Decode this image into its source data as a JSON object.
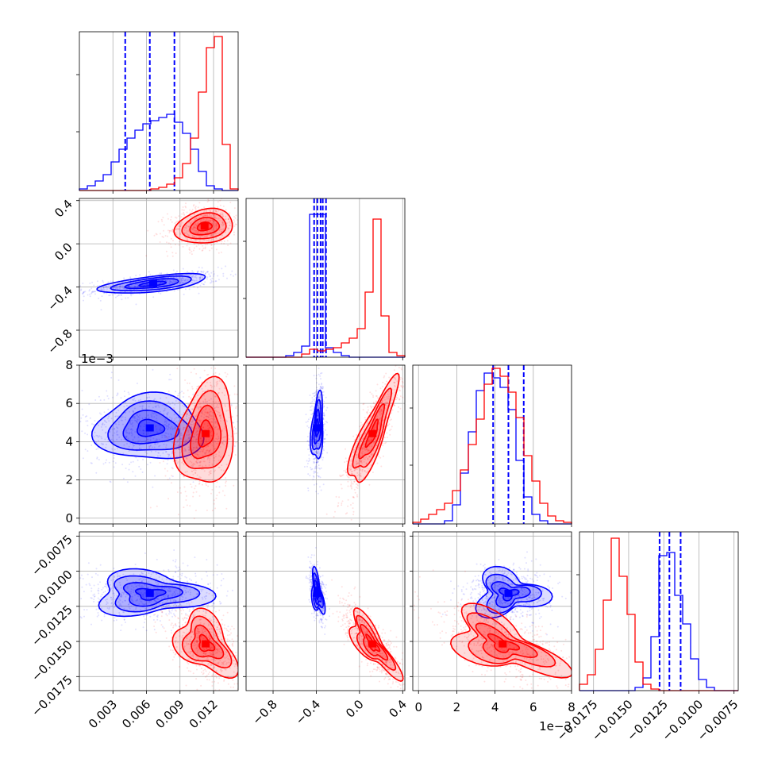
{
  "chart_data": {
    "type": "corner",
    "colors": {
      "blue": "#0000ff",
      "red": "#ff0000",
      "grid": "#b0b0b0"
    },
    "parameters": [
      {
        "ticks": [
          0.003,
          0.006,
          0.009,
          0.012
        ],
        "tick_labels": [
          "0.003",
          "0.006",
          "0.009",
          "0.012"
        ],
        "range": [
          0.0,
          0.0142
        ],
        "offset_text": ""
      },
      {
        "ticks": [
          -0.8,
          -0.4,
          0.0,
          0.4
        ],
        "tick_labels": [
          "−0.8",
          "−0.4",
          "0.0",
          "0.4"
        ],
        "range": [
          -1.05,
          0.42
        ],
        "offset_text": ""
      },
      {
        "ticks": [
          0,
          2,
          4,
          6,
          8
        ],
        "tick_labels": [
          "0",
          "2",
          "4",
          "6",
          "8"
        ],
        "range": [
          -0.3,
          8.0
        ],
        "offset_text": "1e−3"
      },
      {
        "ticks": [
          -0.0175,
          -0.015,
          -0.0125,
          -0.01,
          -0.0075
        ],
        "tick_labels": [
          "−0.0175",
          "−0.0150",
          "−0.0125",
          "−0.0100",
          "−0.0075"
        ],
        "range": [
          -0.0185,
          -0.0072
        ],
        "offset_text": ""
      }
    ],
    "histograms": [
      {
        "blue": {
          "edges_range": [
            0.0,
            0.0142
          ],
          "counts": [
            0.01,
            0.03,
            0.06,
            0.1,
            0.18,
            0.26,
            0.33,
            0.38,
            0.42,
            0.44,
            0.46,
            0.48,
            0.43,
            0.36,
            0.26,
            0.12,
            0.03,
            0.01,
            0,
            0
          ]
        },
        "red": {
          "edges_range": [
            0.0,
            0.0142
          ],
          "counts": [
            0,
            0,
            0,
            0,
            0,
            0,
            0,
            0,
            0,
            0.01,
            0.02,
            0.04,
            0.08,
            0.17,
            0.33,
            0.62,
            0.9,
            0.97,
            0.29,
            0.01
          ]
        },
        "quantiles": [
          0.0041,
          0.0063,
          0.0085
        ]
      },
      {
        "blue": {
          "edges_range": [
            -1.05,
            0.42
          ],
          "counts": [
            0,
            0,
            0,
            0,
            0,
            0.01,
            0.03,
            0.07,
            0.9,
            0.9,
            0.06,
            0.03,
            0.01,
            0,
            0,
            0,
            0,
            0,
            0,
            0
          ]
        },
        "red": {
          "edges_range": [
            -1.05,
            0.42
          ],
          "counts": [
            0,
            0,
            0,
            0,
            0,
            0,
            0,
            0.02,
            0.05,
            0.04,
            0.05,
            0.06,
            0.09,
            0.12,
            0.18,
            0.41,
            0.87,
            0.26,
            0.03,
            0.01
          ]
        },
        "quantiles": [
          -0.42,
          -0.39,
          -0.36,
          -0.34,
          -0.31
        ]
      },
      {
        "blue": {
          "edges_range": [
            -0.3,
            8.0
          ],
          "counts": [
            0,
            0,
            0,
            0,
            0.02,
            0.12,
            0.32,
            0.58,
            0.84,
            0.95,
            0.92,
            0.86,
            0.72,
            0.4,
            0.17,
            0.06,
            0.02,
            0,
            0,
            0
          ]
        },
        "red": {
          "edges_range": [
            -0.3,
            8.0
          ],
          "counts": [
            0.01,
            0.03,
            0.06,
            0.09,
            0.13,
            0.21,
            0.34,
            0.5,
            0.66,
            0.88,
            0.98,
            0.93,
            0.83,
            0.67,
            0.43,
            0.27,
            0.13,
            0.05,
            0.02,
            0.01
          ]
        },
        "quantiles": [
          3.9,
          4.7,
          5.5
        ]
      },
      {
        "blue": {
          "edges_range": [
            -0.0185,
            -0.0072
          ],
          "counts": [
            0,
            0,
            0,
            0,
            0,
            0,
            0,
            0.02,
            0.08,
            0.34,
            0.85,
            0.87,
            0.6,
            0.42,
            0.2,
            0.07,
            0.02,
            0,
            0,
            0
          ]
        },
        "red": {
          "edges_range": [
            -0.0185,
            -0.0072
          ],
          "counts": [
            0.04,
            0.1,
            0.26,
            0.57,
            0.96,
            0.72,
            0.48,
            0.18,
            0.04,
            0.01,
            0,
            0,
            0,
            0,
            0,
            0,
            0,
            0,
            0,
            0
          ]
        },
        "quantiles": [
          -0.0128,
          -0.0121,
          -0.0113
        ]
      }
    ],
    "scatter_panels": [
      {
        "i": 1,
        "j": 0,
        "blue": {
          "mean": [
            0.0066,
            -0.37
          ],
          "sd": [
            0.0024,
            0.045
          ],
          "rho": 0.6
        },
        "red": {
          "mean": [
            0.0112,
            0.16
          ],
          "sd": [
            0.0013,
            0.08
          ],
          "rho": 0.2
        }
      },
      {
        "i": 2,
        "j": 0,
        "blue": {
          "mean": [
            0.0063,
            4.7
          ],
          "sd": [
            0.0024,
            0.85
          ],
          "rho": 0.0
        },
        "red": {
          "mean": [
            0.0113,
            4.4
          ],
          "sd": [
            0.0013,
            1.35
          ],
          "rho": 0.2
        }
      },
      {
        "i": 2,
        "j": 1,
        "blue": {
          "mean": [
            -0.39,
            4.7
          ],
          "sd": [
            0.028,
            0.85
          ],
          "rho": 0.3
        },
        "red": {
          "mean": [
            0.12,
            4.4
          ],
          "sd": [
            0.11,
            1.35
          ],
          "rho": 0.85
        }
      },
      {
        "i": 3,
        "j": 0,
        "blue": {
          "mean": [
            0.0063,
            -0.0116
          ],
          "sd": [
            0.0024,
            0.00075
          ],
          "rho": 0.0
        },
        "red": {
          "mean": [
            0.0113,
            -0.0152
          ],
          "sd": [
            0.0013,
            0.0011
          ],
          "rho": -0.4
        }
      },
      {
        "i": 3,
        "j": 1,
        "blue": {
          "mean": [
            -0.39,
            -0.0116
          ],
          "sd": [
            0.028,
            0.00075
          ],
          "rho": -0.5
        },
        "red": {
          "mean": [
            0.12,
            -0.0152
          ],
          "sd": [
            0.11,
            0.0011
          ],
          "rho": -0.8
        }
      },
      {
        "i": 3,
        "j": 2,
        "blue": {
          "mean": [
            4.7,
            -0.0116
          ],
          "sd": [
            0.85,
            0.00075
          ],
          "rho": 0.0
        },
        "red": {
          "mean": [
            4.4,
            -0.0152
          ],
          "sd": [
            1.35,
            0.0011
          ],
          "rho": -0.6
        }
      }
    ]
  }
}
